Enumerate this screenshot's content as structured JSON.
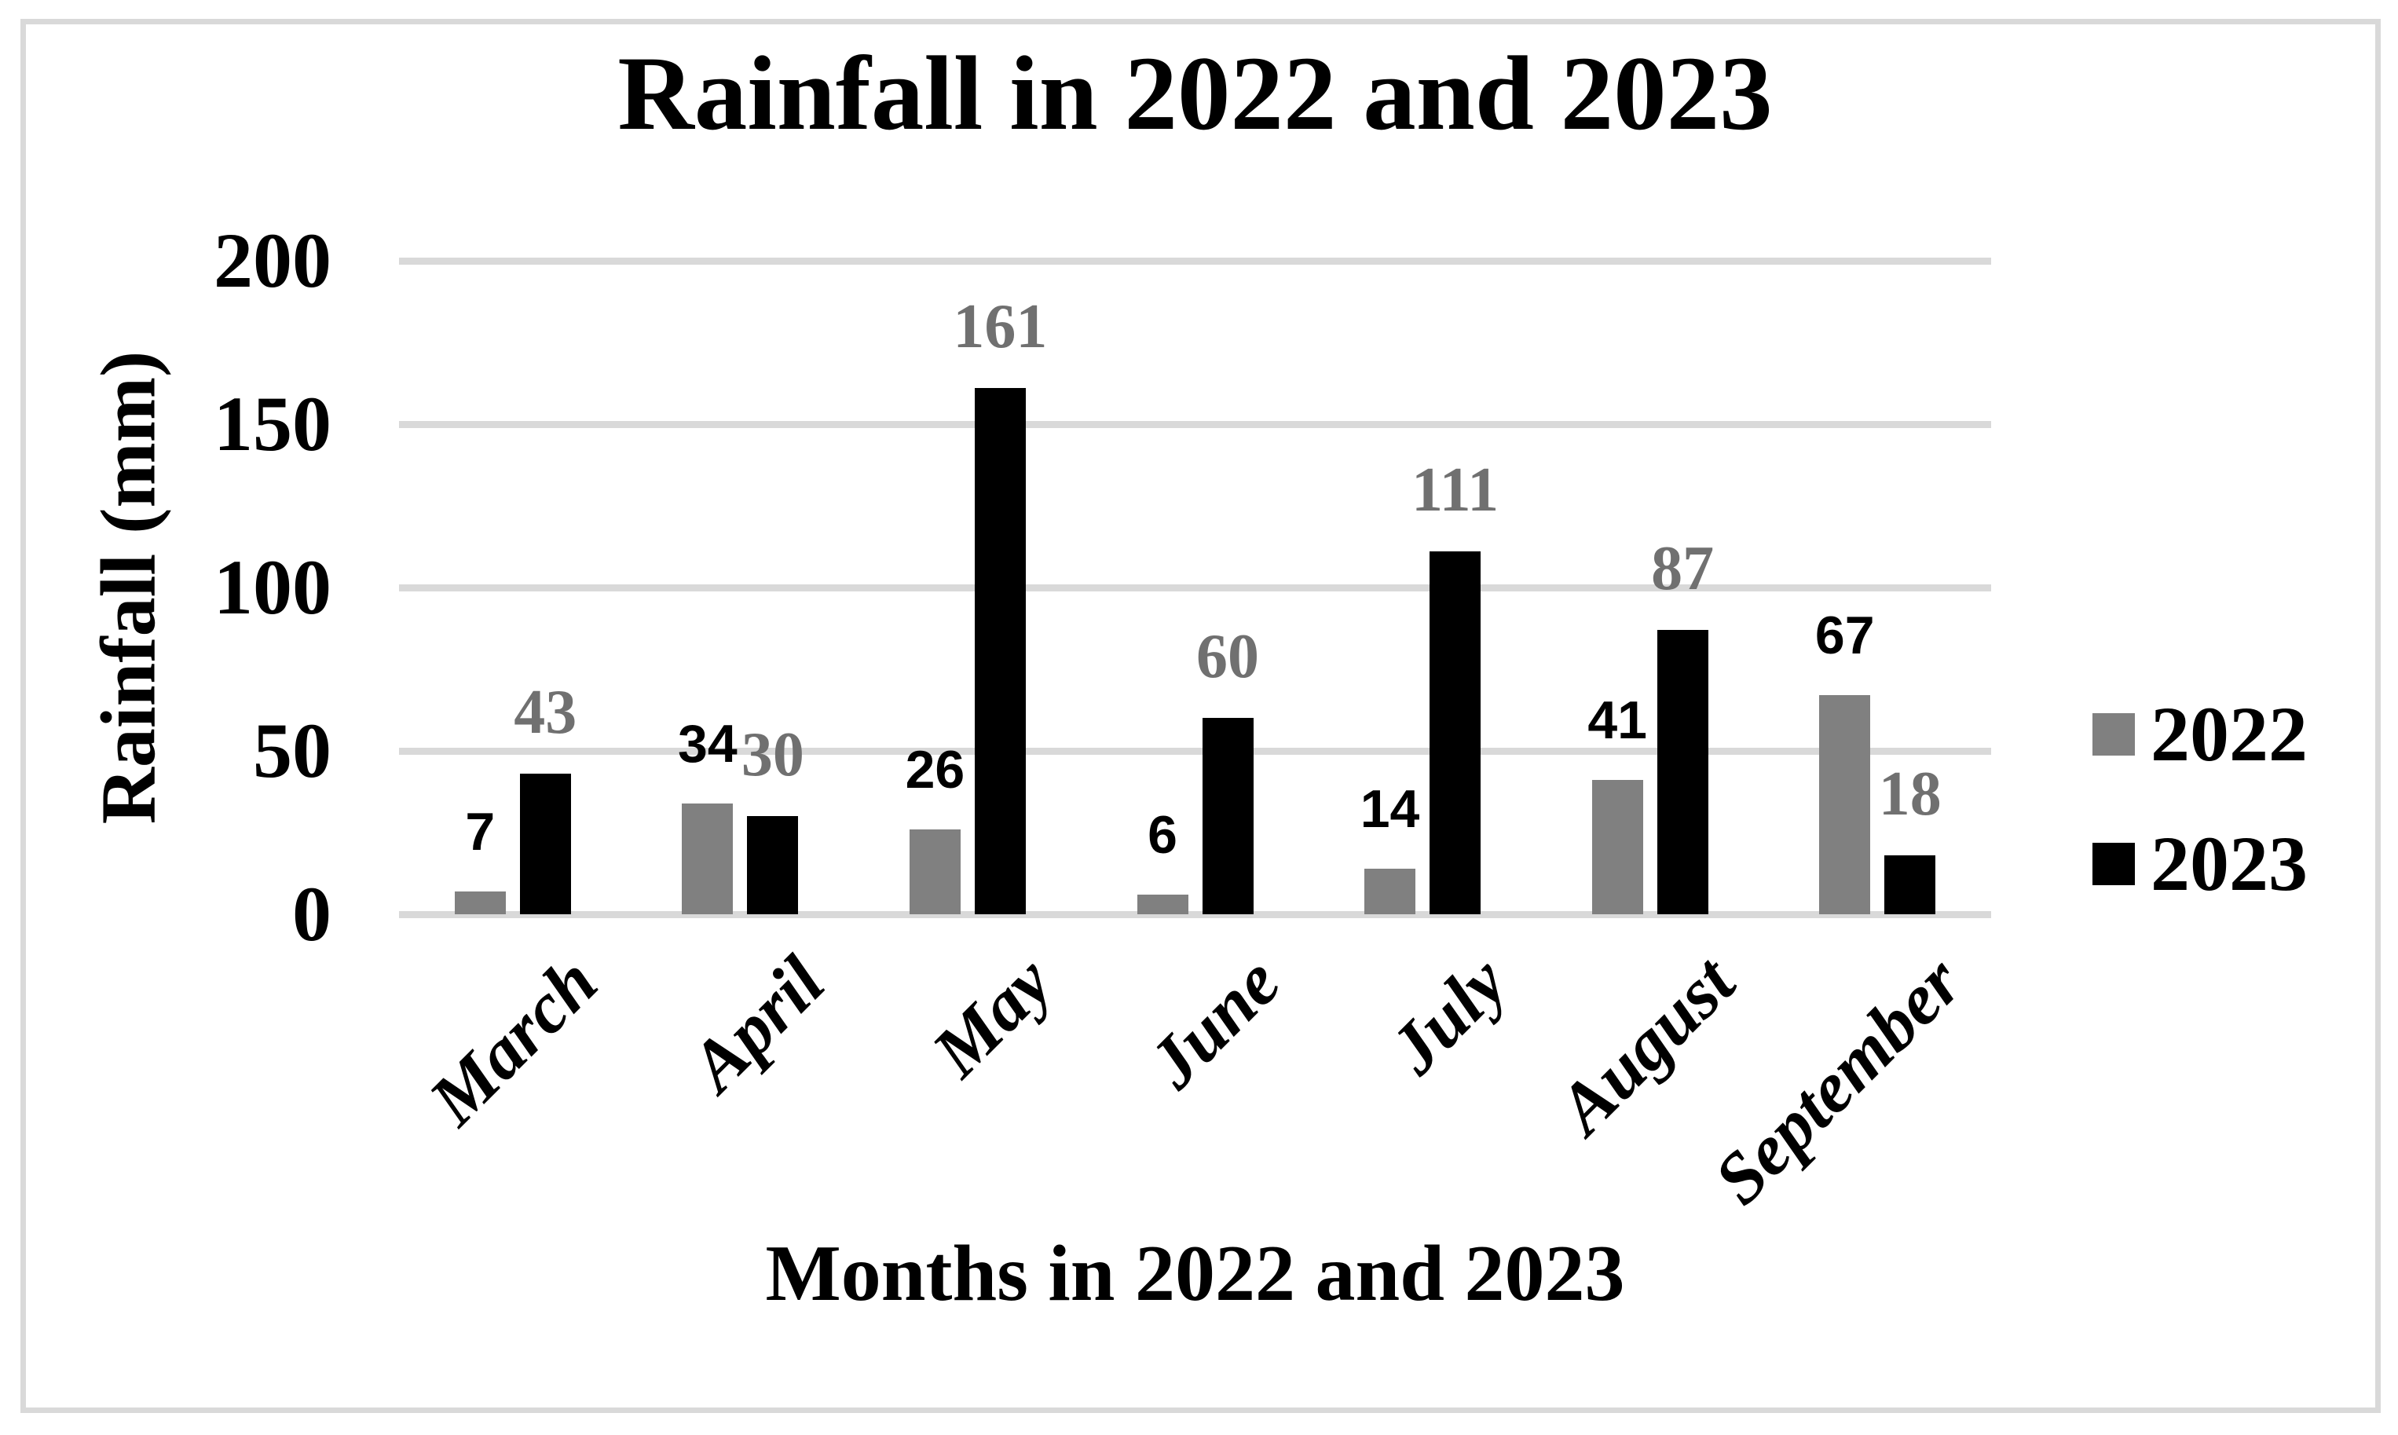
{
  "chart_data": {
    "type": "bar",
    "title": "Rainfall in 2022 and 2023",
    "xlabel": "Months in 2022 and 2023",
    "ylabel": "Rainfall (mm)",
    "categories": [
      "March",
      "April",
      "May",
      "June",
      "July",
      "August",
      "September"
    ],
    "series": [
      {
        "name": "2022",
        "color": "#808080",
        "label_color": "#000000",
        "values": [
          7,
          34,
          26,
          6,
          14,
          41,
          67
        ]
      },
      {
        "name": "2023",
        "color": "#000000",
        "label_color": "#707070",
        "values": [
          43,
          30,
          161,
          60,
          111,
          87,
          18
        ]
      }
    ],
    "yticks": [
      0,
      50,
      100,
      150,
      200
    ],
    "ylim": [
      0,
      200
    ],
    "grid": true,
    "legend_position": "right",
    "bar_labels_shown": true
  },
  "colors": {
    "background": "#ffffff",
    "gridline": "#d9d9d9",
    "frame_border": "#d9d9d9",
    "text": "#000000"
  }
}
